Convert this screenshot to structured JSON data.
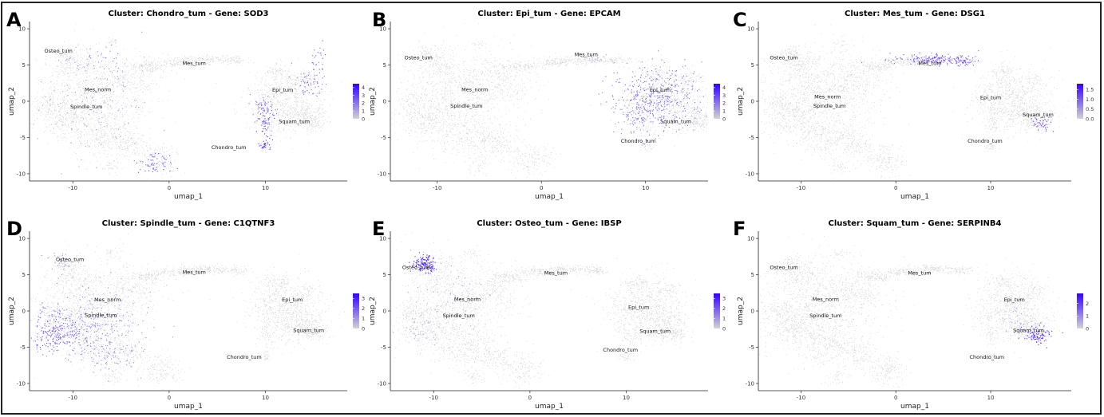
{
  "figure": {
    "colors": {
      "low": "#d3d3d3",
      "high": "#3300ff",
      "background": "#ffffff",
      "frame": "#222222"
    }
  },
  "chart_data": [
    {
      "panel": "A",
      "type": "scatter",
      "title": "Cluster: Chondro_tum - Gene: SOD3",
      "xlabel": "umap_1",
      "ylabel": "umap_2",
      "xlim": [
        -14.5,
        18.5
      ],
      "ylim": [
        -11,
        11
      ],
      "xticks": [
        -10,
        0,
        10
      ],
      "yticks": [
        -10,
        -5,
        0,
        5,
        10
      ],
      "legend": {
        "ticks": [
          "4",
          "3",
          "2",
          "1",
          "0"
        ],
        "max": 4.5,
        "position": "right"
      },
      "highlight_cluster": "Chondro_tum",
      "cluster_labels": [
        {
          "text": "Osteo_tum",
          "x": -11.5,
          "y": 6.7
        },
        {
          "text": "Mes_tum",
          "x": 2.6,
          "y": 5.0
        },
        {
          "text": "Mes_norm",
          "x": -7.4,
          "y": 1.4
        },
        {
          "text": "Spindle_tum",
          "x": -8.6,
          "y": -1.0
        },
        {
          "text": "Epi_tum",
          "x": 11.8,
          "y": 1.3
        },
        {
          "text": "Squam_tum",
          "x": 13.0,
          "y": -3.0
        },
        {
          "text": "Chondro_tum",
          "x": 6.2,
          "y": -6.6
        }
      ],
      "hot_regions": [
        {
          "x": 10.0,
          "y": -3.0,
          "sx": 0.4,
          "sy": 1.0,
          "expr": 0.85,
          "n": 40
        },
        {
          "x": 10.0,
          "y": -1.0,
          "sx": 0.6,
          "sy": 1.0,
          "expr": 0.6,
          "n": 70
        },
        {
          "x": 14.5,
          "y": 2.6,
          "sx": 0.8,
          "sy": 1.0,
          "expr": 0.6,
          "n": 60
        },
        {
          "x": 15.5,
          "y": 6.0,
          "sx": 0.4,
          "sy": 1.0,
          "expr": 0.7,
          "n": 25
        },
        {
          "x": 10.0,
          "y": -6.0,
          "sx": 0.3,
          "sy": 0.4,
          "expr": 0.9,
          "n": 25
        },
        {
          "x": -1.5,
          "y": -8.5,
          "sx": 1.0,
          "sy": 0.8,
          "expr": 0.75,
          "n": 55
        },
        {
          "x": -8.0,
          "y": 0.5,
          "sx": 3.0,
          "sy": 3.5,
          "expr": 0.35,
          "n": 130
        },
        {
          "x": -8.0,
          "y": 5.5,
          "sx": 2.0,
          "sy": 1.0,
          "expr": 0.5,
          "n": 40
        }
      ]
    },
    {
      "panel": "B",
      "type": "scatter",
      "title": "Cluster: Epi_tum - Gene: EPCAM",
      "xlabel": "umap_1",
      "ylabel": "umap_2",
      "xlim": [
        -14.5,
        16
      ],
      "ylim": [
        -11,
        11
      ],
      "xticks": [
        -10,
        0,
        10
      ],
      "yticks": [
        -10,
        -5,
        0,
        5,
        10
      ],
      "legend": {
        "ticks": [
          "4",
          "3",
          "2",
          "1",
          "0"
        ],
        "max": 4.5,
        "position": "right"
      },
      "highlight_cluster": "Epi_tum",
      "cluster_labels": [
        {
          "text": "Osteo_tum",
          "x": -11.8,
          "y": 5.8
        },
        {
          "text": "Mes_tum",
          "x": 4.3,
          "y": 6.2
        },
        {
          "text": "Mes_norm",
          "x": -6.4,
          "y": 1.4
        },
        {
          "text": "Spindle_tum",
          "x": -7.2,
          "y": -0.9
        },
        {
          "text": "Epi_tum",
          "x": 11.4,
          "y": 1.3
        },
        {
          "text": "Squam_tum",
          "x": 12.9,
          "y": -3.0
        },
        {
          "text": "Chondro_tum",
          "x": 9.3,
          "y": -5.7
        }
      ],
      "hot_regions": [
        {
          "x": 11.0,
          "y": 0.5,
          "sx": 2.0,
          "sy": 2.2,
          "expr": 0.6,
          "n": 420
        },
        {
          "x": 9.0,
          "y": -2.0,
          "sx": 1.0,
          "sy": 1.0,
          "expr": 0.5,
          "n": 60
        },
        {
          "x": 5.0,
          "y": 6.0,
          "sx": 1.5,
          "sy": 0.4,
          "expr": 0.3,
          "n": 25
        }
      ]
    },
    {
      "panel": "C",
      "type": "scatter",
      "title": "Cluster: Mes_tum - Gene: DSG1",
      "xlabel": "umap_1",
      "ylabel": "umap_2",
      "xlim": [
        -14.5,
        18.5
      ],
      "ylim": [
        -11,
        11
      ],
      "xticks": [
        -10,
        0,
        10
      ],
      "yticks": [
        -10,
        -5,
        0,
        5,
        10
      ],
      "legend": {
        "ticks": [
          "1.5",
          "1.0",
          "0.5",
          "0.0"
        ],
        "max": 1.8,
        "position": "right"
      },
      "highlight_cluster": "Mes_tum",
      "cluster_labels": [
        {
          "text": "Osteo_tum",
          "x": -11.8,
          "y": 5.8
        },
        {
          "text": "Mes_tum",
          "x": 3.6,
          "y": 5.0
        },
        {
          "text": "Mes_norm",
          "x": -7.2,
          "y": 0.4
        },
        {
          "text": "Spindle_tum",
          "x": -7.0,
          "y": -0.9
        },
        {
          "text": "Epi_tum",
          "x": 10.0,
          "y": 0.3
        },
        {
          "text": "Squam_tum",
          "x": 15.0,
          "y": -2.1
        },
        {
          "text": "Chondro_tum",
          "x": 9.4,
          "y": -5.7
        }
      ],
      "hot_regions": [
        {
          "x": 4.0,
          "y": 5.8,
          "sx": 2.0,
          "sy": 0.4,
          "expr": 0.75,
          "n": 160
        },
        {
          "x": 7.0,
          "y": 5.5,
          "sx": 0.5,
          "sy": 0.3,
          "expr": 0.8,
          "n": 30
        },
        {
          "x": 15.3,
          "y": -3.0,
          "sx": 0.5,
          "sy": 0.5,
          "expr": 0.8,
          "n": 40
        }
      ]
    },
    {
      "panel": "D",
      "type": "scatter",
      "title": "Cluster: Spindle_tum - Gene: C1QTNF3",
      "xlabel": "umap_1",
      "ylabel": "umap_2",
      "xlim": [
        -14.5,
        18.5
      ],
      "ylim": [
        -11,
        11
      ],
      "xticks": [
        -10,
        0,
        10
      ],
      "yticks": [
        -10,
        -5,
        0,
        5,
        10
      ],
      "legend": {
        "ticks": [
          "3",
          "2",
          "1",
          "0"
        ],
        "max": 3.5,
        "position": "right"
      },
      "highlight_cluster": "Spindle_tum",
      "cluster_labels": [
        {
          "text": "Osteo_tum",
          "x": -10.3,
          "y": 6.9
        },
        {
          "text": "Mes_tum",
          "x": 2.6,
          "y": 5.1
        },
        {
          "text": "Mes_norm",
          "x": -6.4,
          "y": 1.3
        },
        {
          "text": "Spindle_tum",
          "x": -7.1,
          "y": -0.8
        },
        {
          "text": "Epi_tum",
          "x": 12.8,
          "y": 1.3
        },
        {
          "text": "Squam_tum",
          "x": 14.5,
          "y": -2.9
        },
        {
          "text": "Chondro_tum",
          "x": 7.8,
          "y": -6.6
        }
      ],
      "hot_regions": [
        {
          "x": -11.5,
          "y": -3.0,
          "sx": 1.5,
          "sy": 1.5,
          "expr": 0.7,
          "n": 220
        },
        {
          "x": -8.0,
          "y": -2.0,
          "sx": 2.5,
          "sy": 2.5,
          "expr": 0.45,
          "n": 260
        },
        {
          "x": -6.0,
          "y": -6.0,
          "sx": 1.5,
          "sy": 1.5,
          "expr": 0.45,
          "n": 80
        },
        {
          "x": -11.0,
          "y": 7.0,
          "sx": 0.8,
          "sy": 0.8,
          "expr": 0.4,
          "n": 30
        }
      ]
    },
    {
      "panel": "E",
      "type": "scatter",
      "title": "Cluster: Osteo_tum - Gene: IBSP",
      "xlabel": "umap_1",
      "ylabel": "umap_2",
      "xlim": [
        -14.5,
        18.5
      ],
      "ylim": [
        -11,
        11
      ],
      "xticks": [
        -10,
        0,
        10
      ],
      "yticks": [
        -10,
        -5,
        0,
        5,
        10
      ],
      "legend": {
        "ticks": [
          "3",
          "2",
          "1",
          "0"
        ],
        "max": 3.5,
        "position": "right"
      },
      "highlight_cluster": "Osteo_tum",
      "cluster_labels": [
        {
          "text": "Osteo_tum",
          "x": -11.8,
          "y": 5.8
        },
        {
          "text": "Mes_tum",
          "x": 2.7,
          "y": 5.0
        },
        {
          "text": "Mes_norm",
          "x": -6.5,
          "y": 1.4
        },
        {
          "text": "Spindle_tum",
          "x": -7.4,
          "y": -0.9
        },
        {
          "text": "Epi_tum",
          "x": 11.3,
          "y": 0.3
        },
        {
          "text": "Squam_tum",
          "x": 13.0,
          "y": -3.0
        },
        {
          "text": "Chondro_tum",
          "x": 9.4,
          "y": -5.6
        }
      ],
      "hot_regions": [
        {
          "x": -11.0,
          "y": 6.5,
          "sx": 0.6,
          "sy": 0.7,
          "expr": 0.95,
          "n": 140
        },
        {
          "x": -9.0,
          "y": 2.0,
          "sx": 2.5,
          "sy": 3.0,
          "expr": 0.3,
          "n": 60
        },
        {
          "x": -11.5,
          "y": -2.5,
          "sx": 1.0,
          "sy": 1.0,
          "expr": 0.3,
          "n": 30
        }
      ]
    },
    {
      "panel": "F",
      "type": "scatter",
      "title": "Cluster: Squam_tum - Gene: SERPINB4",
      "xlabel": "umap_1",
      "ylabel": "umap_2",
      "xlim": [
        -14.5,
        18.5
      ],
      "ylim": [
        -11,
        11
      ],
      "xticks": [
        -10,
        0,
        10
      ],
      "yticks": [
        -10,
        -5,
        0,
        5,
        10
      ],
      "legend": {
        "ticks": [
          "2",
          "1",
          "0"
        ],
        "max": 2.8,
        "position": "right"
      },
      "highlight_cluster": "Squam_tum",
      "cluster_labels": [
        {
          "text": "Osteo_tum",
          "x": -11.8,
          "y": 5.8
        },
        {
          "text": "Mes_tum",
          "x": 2.5,
          "y": 5.0
        },
        {
          "text": "Mes_norm",
          "x": -7.4,
          "y": 1.4
        },
        {
          "text": "Spindle_tum",
          "x": -7.4,
          "y": -0.9
        },
        {
          "text": "Epi_tum",
          "x": 12.5,
          "y": 1.3
        },
        {
          "text": "Squam_tum",
          "x": 14.0,
          "y": -2.9
        },
        {
          "text": "Chondro_tum",
          "x": 9.6,
          "y": -6.6
        }
      ],
      "hot_regions": [
        {
          "x": 15.0,
          "y": -3.3,
          "sx": 0.8,
          "sy": 0.6,
          "expr": 0.9,
          "n": 90
        },
        {
          "x": 13.0,
          "y": -1.5,
          "sx": 1.2,
          "sy": 1.0,
          "expr": 0.35,
          "n": 30
        }
      ]
    }
  ]
}
